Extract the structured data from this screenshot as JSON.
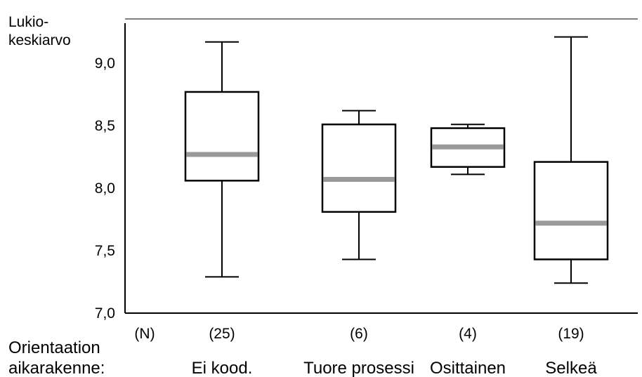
{
  "chart_data": {
    "type": "boxplot",
    "ylabel": [
      "Lukio-",
      "keskiarvo"
    ],
    "xlabel": [
      "Orientaation",
      "aikarakenne:"
    ],
    "count_header": "(N)",
    "ylim": [
      7.0,
      9.4
    ],
    "yticks": [
      {
        "value": 7.0,
        "label": "7,0"
      },
      {
        "value": 7.5,
        "label": "7,5"
      },
      {
        "value": 8.0,
        "label": "8,0"
      },
      {
        "value": 8.5,
        "label": "8,5"
      },
      {
        "value": 9.0,
        "label": "9,0"
      }
    ],
    "grid": false,
    "boxes": [
      {
        "category": "Ei kood.",
        "n_label": "(25)",
        "min": 7.29,
        "q1": 8.06,
        "median": 8.27,
        "q3": 8.77,
        "max": 9.17
      },
      {
        "category": "Tuore prosessi",
        "n_label": "(6)",
        "min": 7.43,
        "q1": 7.81,
        "median": 8.07,
        "q3": 8.51,
        "max": 8.62
      },
      {
        "category": "Osittainen",
        "n_label": "(4)",
        "min": 8.11,
        "q1": 8.17,
        "median": 8.33,
        "q3": 8.48,
        "max": 8.51
      },
      {
        "category": "Selkeä",
        "n_label": "(19)",
        "min": 7.24,
        "q1": 7.43,
        "median": 7.72,
        "q3": 8.21,
        "max": 9.21
      }
    ],
    "colors": {
      "box": "#000000",
      "median": "#999999"
    }
  }
}
